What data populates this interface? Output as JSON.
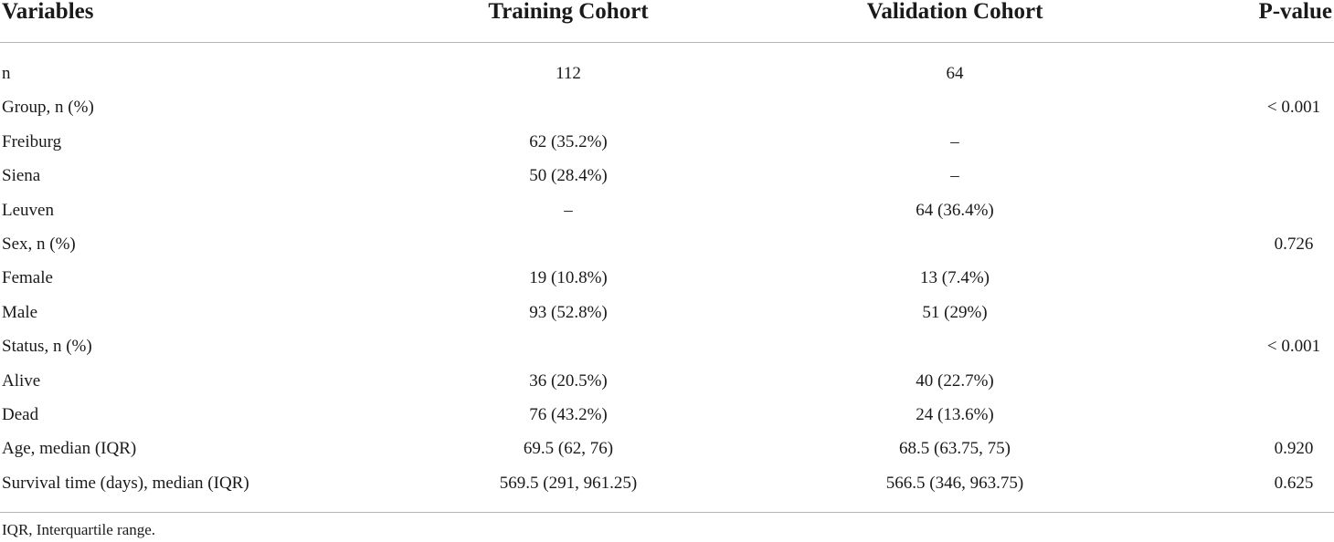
{
  "table": {
    "headers": {
      "variables": "Variables",
      "training": "Training Cohort",
      "validation": "Validation Cohort",
      "pvalue": "P-value"
    },
    "rows": [
      {
        "variable": "n",
        "training": "112",
        "validation": "64",
        "pvalue": ""
      },
      {
        "variable": "Group, n (%)",
        "training": "",
        "validation": "",
        "pvalue": "< 0.001"
      },
      {
        "variable": "Freiburg",
        "training": "62 (35.2%)",
        "validation": "–",
        "pvalue": ""
      },
      {
        "variable": "Siena",
        "training": "50 (28.4%)",
        "validation": "–",
        "pvalue": ""
      },
      {
        "variable": "Leuven",
        "training": "–",
        "validation": "64 (36.4%)",
        "pvalue": ""
      },
      {
        "variable": "Sex, n (%)",
        "training": "",
        "validation": "",
        "pvalue": "0.726"
      },
      {
        "variable": "Female",
        "training": "19 (10.8%)",
        "validation": "13 (7.4%)",
        "pvalue": ""
      },
      {
        "variable": "Male",
        "training": "93 (52.8%)",
        "validation": "51 (29%)",
        "pvalue": ""
      },
      {
        "variable": "Status, n (%)",
        "training": "",
        "validation": "",
        "pvalue": "< 0.001"
      },
      {
        "variable": "Alive",
        "training": "36 (20.5%)",
        "validation": "40 (22.7%)",
        "pvalue": ""
      },
      {
        "variable": "Dead",
        "training": "76 (43.2%)",
        "validation": "24 (13.6%)",
        "pvalue": ""
      },
      {
        "variable": "Age, median (IQR)",
        "training": "69.5 (62, 76)",
        "validation": "68.5 (63.75, 75)",
        "pvalue": "0.920"
      },
      {
        "variable": "Survival time (days), median (IQR)",
        "training": "569.5 (291, 961.25)",
        "validation": "566.5 (346, 963.75)",
        "pvalue": "0.625"
      }
    ],
    "footnote": "IQR, Interquartile range."
  }
}
